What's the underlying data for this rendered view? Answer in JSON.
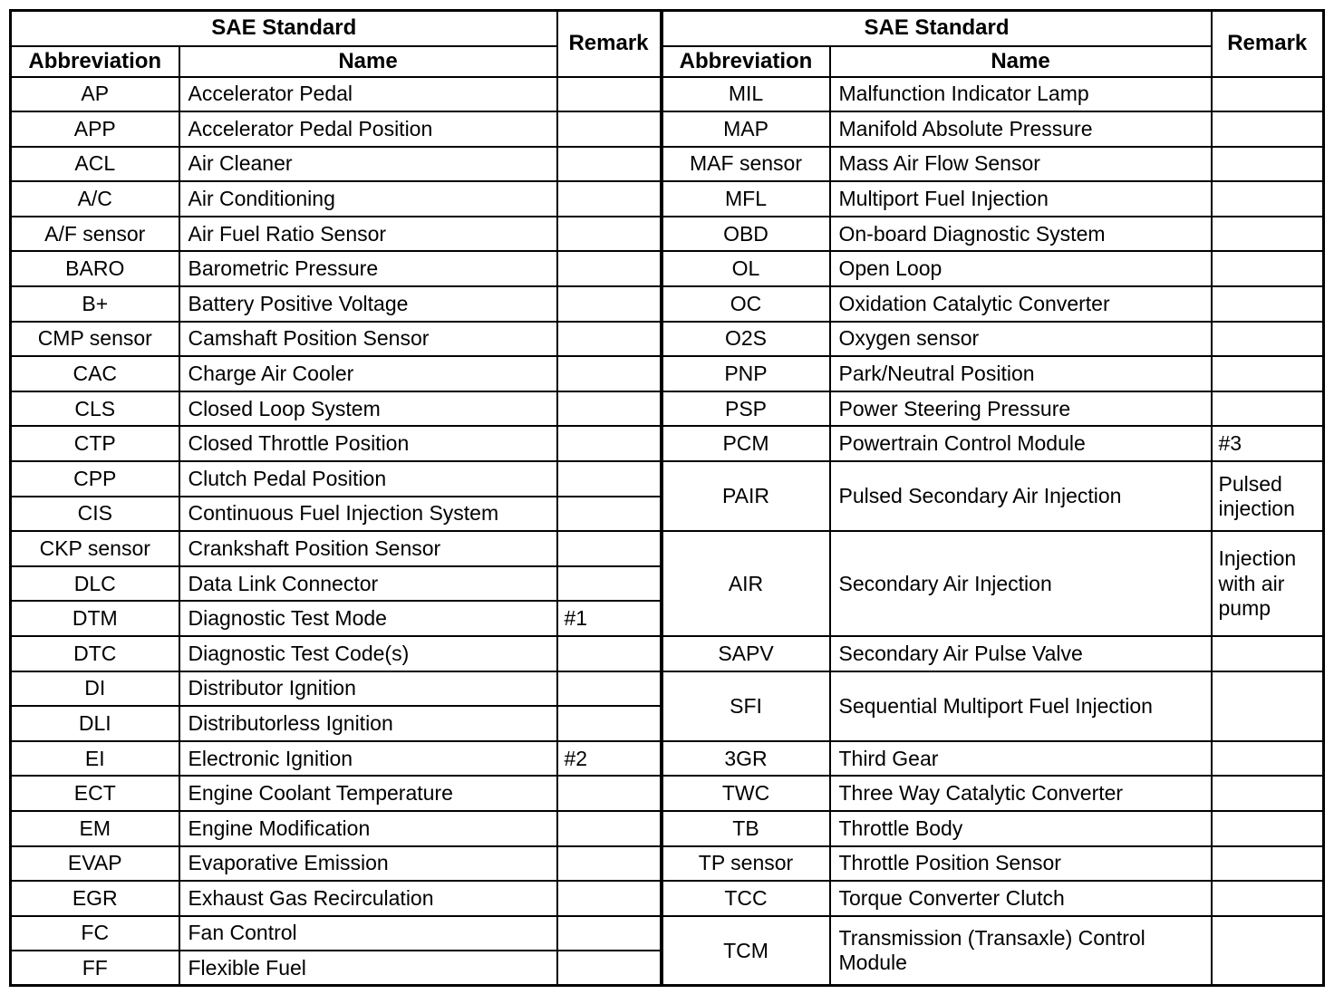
{
  "page": {
    "background": "#ffffff",
    "border_color": "#000000",
    "text_color": "#000000"
  },
  "header": {
    "sae_standard": "SAE Standard",
    "abbreviation": "Abbreviation",
    "name": "Name",
    "remark": "Remark"
  },
  "left_rows": [
    {
      "abbr": "AP",
      "name": "Accelerator Pedal",
      "remark": "",
      "span": 1
    },
    {
      "abbr": "APP",
      "name": "Accelerator Pedal Position",
      "remark": "",
      "span": 1
    },
    {
      "abbr": "ACL",
      "name": "Air Cleaner",
      "remark": "",
      "span": 1
    },
    {
      "abbr": "A/C",
      "name": "Air Conditioning",
      "remark": "",
      "span": 1
    },
    {
      "abbr": "A/F sensor",
      "name": "Air Fuel Ratio Sensor",
      "remark": "",
      "span": 1
    },
    {
      "abbr": "BARO",
      "name": "Barometric Pressure",
      "remark": "",
      "span": 1
    },
    {
      "abbr": "B+",
      "name": "Battery Positive Voltage",
      "remark": "",
      "span": 1
    },
    {
      "abbr": "CMP sensor",
      "name": "Camshaft Position Sensor",
      "remark": "",
      "span": 1
    },
    {
      "abbr": "CAC",
      "name": "Charge Air Cooler",
      "remark": "",
      "span": 1
    },
    {
      "abbr": "CLS",
      "name": "Closed Loop System",
      "remark": "",
      "span": 1
    },
    {
      "abbr": "CTP",
      "name": "Closed Throttle Position",
      "remark": "",
      "span": 1
    },
    {
      "abbr": "CPP",
      "name": "Clutch Pedal Position",
      "remark": "",
      "span": 1
    },
    {
      "abbr": "CIS",
      "name": "Continuous Fuel Injection System",
      "remark": "",
      "span": 1
    },
    {
      "abbr": "CKP sensor",
      "name": "Crankshaft Position Sensor",
      "remark": "",
      "span": 1
    },
    {
      "abbr": "DLC",
      "name": "Data Link Connector",
      "remark": "",
      "span": 1
    },
    {
      "abbr": "DTM",
      "name": "Diagnostic Test Mode",
      "remark": "#1",
      "span": 1
    },
    {
      "abbr": "DTC",
      "name": "Diagnostic Test Code(s)",
      "remark": "",
      "span": 1
    },
    {
      "abbr": "DI",
      "name": "Distributor Ignition",
      "remark": "",
      "span": 1
    },
    {
      "abbr": "DLI",
      "name": "Distributorless Ignition",
      "remark": "",
      "span": 1
    },
    {
      "abbr": "EI",
      "name": "Electronic Ignition",
      "remark": "#2",
      "span": 1
    },
    {
      "abbr": "ECT",
      "name": "Engine Coolant Temperature",
      "remark": "",
      "span": 1
    },
    {
      "abbr": "EM",
      "name": "Engine Modification",
      "remark": "",
      "span": 1
    },
    {
      "abbr": "EVAP",
      "name": "Evaporative Emission",
      "remark": "",
      "span": 1
    },
    {
      "abbr": "EGR",
      "name": "Exhaust Gas Recirculation",
      "remark": "",
      "span": 1
    },
    {
      "abbr": "FC",
      "name": "Fan Control",
      "remark": "",
      "span": 1
    },
    {
      "abbr": "FF",
      "name": "Flexible Fuel",
      "remark": "",
      "span": 1
    }
  ],
  "right_rows": [
    {
      "abbr": "MIL",
      "name": "Malfunction Indicator Lamp",
      "remark": "",
      "span": 1
    },
    {
      "abbr": "MAP",
      "name": "Manifold Absolute Pressure",
      "remark": "",
      "span": 1
    },
    {
      "abbr": "MAF sensor",
      "name": "Mass Air Flow Sensor",
      "remark": "",
      "span": 1
    },
    {
      "abbr": "MFL",
      "name": "Multiport Fuel Injection",
      "remark": "",
      "span": 1
    },
    {
      "abbr": "OBD",
      "name": "On-board Diagnostic System",
      "remark": "",
      "span": 1
    },
    {
      "abbr": "OL",
      "name": "Open Loop",
      "remark": "",
      "span": 1
    },
    {
      "abbr": "OC",
      "name": "Oxidation Catalytic Converter",
      "remark": "",
      "span": 1
    },
    {
      "abbr": "O2S",
      "name": "Oxygen sensor",
      "remark": "",
      "span": 1
    },
    {
      "abbr": "PNP",
      "name": "Park/Neutral Position",
      "remark": "",
      "span": 1
    },
    {
      "abbr": "PSP",
      "name": "Power Steering Pressure",
      "remark": "",
      "span": 1
    },
    {
      "abbr": "PCM",
      "name": "Powertrain Control Module",
      "remark": "#3",
      "span": 1
    },
    {
      "abbr": "PAIR",
      "name": "Pulsed Secondary Air Injection",
      "remark": "Pulsed injection",
      "span": 2
    },
    {
      "abbr": "AIR",
      "name": "Secondary Air Injection",
      "remark": "Injection with air pump",
      "span": 3
    },
    {
      "abbr": "SAPV",
      "name": "Secondary Air Pulse Valve",
      "remark": "",
      "span": 1
    },
    {
      "abbr": "SFI",
      "name": "Sequential Multiport Fuel Injection",
      "remark": "",
      "span": 2
    },
    {
      "abbr": "3GR",
      "name": "Third Gear",
      "remark": "",
      "span": 1
    },
    {
      "abbr": "TWC",
      "name": "Three Way Catalytic Converter",
      "remark": "",
      "span": 1
    },
    {
      "abbr": "TB",
      "name": "Throttle Body",
      "remark": "",
      "span": 1
    },
    {
      "abbr": "TP sensor",
      "name": "Throttle Position Sensor",
      "remark": "",
      "span": 1
    },
    {
      "abbr": "TCC",
      "name": "Torque Converter Clutch",
      "remark": "",
      "span": 1
    },
    {
      "abbr": "TCM",
      "name": "Transmission (Transaxle) Control Module",
      "remark": "",
      "span": 2
    }
  ]
}
